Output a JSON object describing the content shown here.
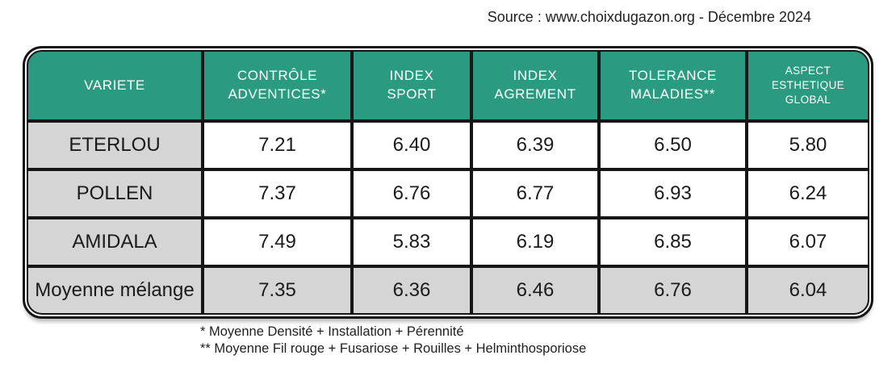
{
  "source_caption": "Source : www.choixdugazon.org - Décembre 2024",
  "chart_data": {
    "type": "table",
    "columns": [
      "VARIETE",
      "CONTRÔLE\nADVENTICES*",
      "INDEX\nSPORT",
      "INDEX\nAGREMENT",
      "TOLERANCE\nMALADIES**",
      "ASPECT\nESTHETIQUE\nGLOBAL"
    ],
    "rows": [
      {
        "label": "ETERLOU",
        "values": [
          "7.21",
          "6.40",
          "6.39",
          "6.50",
          "5.80"
        ],
        "highlight": false
      },
      {
        "label": "POLLEN",
        "values": [
          "7.37",
          "6.76",
          "6.77",
          "6.93",
          "6.24"
        ],
        "highlight": false
      },
      {
        "label": "AMIDALA",
        "values": [
          "7.49",
          "5.83",
          "6.19",
          "6.85",
          "6.07"
        ],
        "highlight": false
      },
      {
        "label": "Moyenne mélange",
        "values": [
          "7.35",
          "6.36",
          "6.46",
          "6.76",
          "6.04"
        ],
        "highlight": true
      }
    ]
  },
  "footnotes": [
    "* Moyenne Densité + Installation + Pérennité",
    "** Moyenne Fil rouge + Fusariose + Rouilles + Helminthosporiose"
  ],
  "colors": {
    "header_green": "#2a9b80",
    "row_gray": "#d5d5d5",
    "border_black": "#161616",
    "header_text": "#ffffff",
    "body_text": "#1b1b1b"
  }
}
